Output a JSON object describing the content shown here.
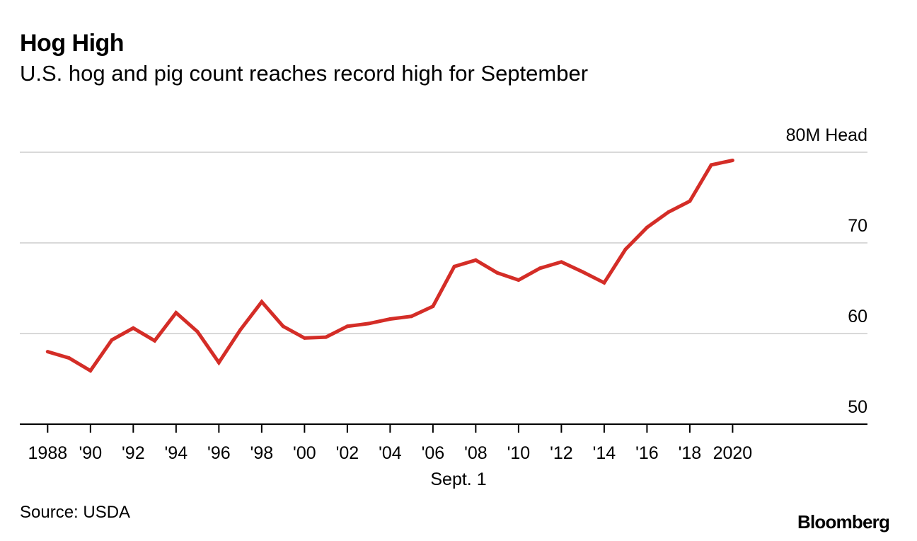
{
  "header": {
    "title": "Hog High",
    "subtitle": "U.S. hog and pig count reaches record high for September"
  },
  "footer": {
    "source": "Source: USDA",
    "brand": "Bloomberg"
  },
  "colors": {
    "line": "#d42d27",
    "grid": "#d9d9d9",
    "axis": "#000000"
  },
  "chart_data": {
    "type": "line",
    "title": "Hog High",
    "subtitle": "U.S. hog and pig count reaches record high for September",
    "xlabel": "Sept. 1",
    "ylabel": "",
    "unit_label": "80M Head",
    "ylim": [
      50,
      80
    ],
    "xlim": [
      1986.7,
      2026.3
    ],
    "grid": true,
    "legend": "none",
    "y_ticks": [
      {
        "value": 80,
        "label": "80M Head"
      },
      {
        "value": 70,
        "label": "70"
      },
      {
        "value": 60,
        "label": "60"
      },
      {
        "value": 50,
        "label": "50"
      }
    ],
    "x_ticks": [
      {
        "value": 1988,
        "label": "1988"
      },
      {
        "value": 1990,
        "label": "'90"
      },
      {
        "value": 1992,
        "label": "'92"
      },
      {
        "value": 1994,
        "label": "'94"
      },
      {
        "value": 1996,
        "label": "'96"
      },
      {
        "value": 1998,
        "label": "'98"
      },
      {
        "value": 2000,
        "label": "'00"
      },
      {
        "value": 2002,
        "label": "'02"
      },
      {
        "value": 2004,
        "label": "'04"
      },
      {
        "value": 2006,
        "label": "'06"
      },
      {
        "value": 2008,
        "label": "'08"
      },
      {
        "value": 2010,
        "label": "'10"
      },
      {
        "value": 2012,
        "label": "'12"
      },
      {
        "value": 2014,
        "label": "'14"
      },
      {
        "value": 2016,
        "label": "'16"
      },
      {
        "value": 2018,
        "label": "'18"
      },
      {
        "value": 2020,
        "label": "2020"
      }
    ],
    "series": [
      {
        "x": [
          1988,
          1989,
          1990,
          1991,
          1992,
          1993,
          1994,
          1995,
          1996,
          1997,
          1998,
          1999,
          2000,
          2001,
          2002,
          2003,
          2004,
          2005,
          2006,
          2007,
          2008,
          2009,
          2010,
          2011,
          2012,
          2013,
          2014,
          2015,
          2016,
          2017,
          2018,
          2019,
          2020
        ],
        "values": [
          58.0,
          57.3,
          55.9,
          59.3,
          60.6,
          59.2,
          62.3,
          60.2,
          56.8,
          60.4,
          63.5,
          60.8,
          59.5,
          59.6,
          60.8,
          61.1,
          61.6,
          61.9,
          63.0,
          67.4,
          68.1,
          66.7,
          65.9,
          67.2,
          67.9,
          66.8,
          65.6,
          69.3,
          71.7,
          73.4,
          74.6,
          78.6,
          79.1
        ]
      }
    ]
  }
}
